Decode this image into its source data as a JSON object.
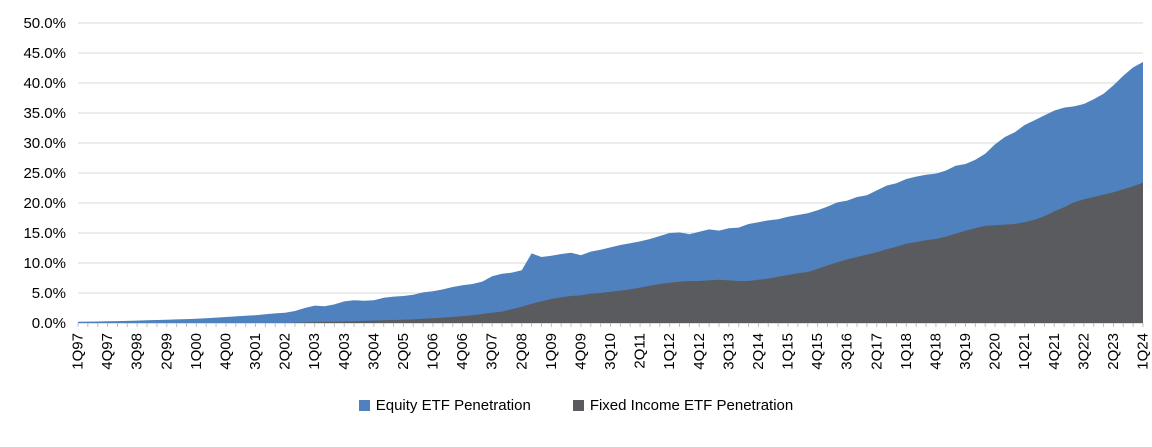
{
  "chart_data": {
    "type": "area",
    "title": "",
    "x_start": "1Q97",
    "x_end": "1Q24",
    "x_frequency": "quarterly",
    "n_points": 109,
    "x_tick_every": 3,
    "x_tick_labels": [
      "1Q97",
      "4Q97",
      "3Q98",
      "2Q99",
      "1Q00",
      "4Q00",
      "3Q01",
      "2Q02",
      "1Q03",
      "4Q03",
      "3Q04",
      "2Q05",
      "1Q06",
      "4Q06",
      "3Q07",
      "2Q08",
      "1Q09",
      "4Q09",
      "3Q10",
      "2Q11",
      "1Q12",
      "4Q12",
      "3Q13",
      "2Q14",
      "1Q15",
      "4Q15",
      "3Q16",
      "2Q17",
      "1Q18",
      "4Q18",
      "3Q19",
      "2Q20",
      "1Q21",
      "4Q21",
      "3Q22",
      "2Q23",
      "1Q24"
    ],
    "ylim": [
      0,
      50
    ],
    "y_tick_step": 5,
    "y_tick_labels_top_to_bottom": [
      "50.0%",
      "45.0%",
      "40.0%",
      "35.0%",
      "30.0%",
      "25.0%",
      "20.0%",
      "15.0%",
      "10.0%",
      "5.0%",
      "0.0%"
    ],
    "grid": "horizontal",
    "legend_position": "bottom",
    "series": [
      {
        "name": "Equity ETF Penetration",
        "color": "#4E81BD",
        "values": [
          0.2,
          0.22,
          0.25,
          0.3,
          0.32,
          0.35,
          0.4,
          0.45,
          0.5,
          0.55,
          0.6,
          0.65,
          0.7,
          0.8,
          0.9,
          1.0,
          1.1,
          1.2,
          1.3,
          1.45,
          1.6,
          1.7,
          2.0,
          2.5,
          2.9,
          2.8,
          3.1,
          3.6,
          3.8,
          3.7,
          3.8,
          4.2,
          4.4,
          4.5,
          4.7,
          5.1,
          5.3,
          5.6,
          6.0,
          6.3,
          6.5,
          6.9,
          7.8,
          8.2,
          8.4,
          8.8,
          11.6,
          11.0,
          11.2,
          11.5,
          11.7,
          11.3,
          11.9,
          12.2,
          12.6,
          13.0,
          13.3,
          13.6,
          14.0,
          14.5,
          15.0,
          15.1,
          14.8,
          15.2,
          15.6,
          15.4,
          15.8,
          15.9,
          16.5,
          16.8,
          17.1,
          17.3,
          17.7,
          18.0,
          18.3,
          18.8,
          19.4,
          20.1,
          20.4,
          21.0,
          21.3,
          22.1,
          22.9,
          23.3,
          24.0,
          24.4,
          24.7,
          24.9,
          25.4,
          26.2,
          26.5,
          27.2,
          28.2,
          29.8,
          31.0,
          31.8,
          33.0,
          33.8,
          34.6,
          35.4,
          35.9,
          36.1,
          36.5,
          37.3,
          38.2,
          39.6,
          41.2,
          42.6,
          43.5
        ]
      },
      {
        "name": "Fixed Income ETF Penetration",
        "color": "#5A5B5E",
        "values": [
          0,
          0,
          0,
          0,
          0,
          0,
          0,
          0,
          0,
          0,
          0,
          0,
          0,
          0,
          0,
          0,
          0,
          0,
          0,
          0,
          0,
          0,
          0.05,
          0.1,
          0.15,
          0.18,
          0.2,
          0.25,
          0.3,
          0.35,
          0.4,
          0.45,
          0.5,
          0.55,
          0.6,
          0.7,
          0.8,
          0.9,
          1.0,
          1.15,
          1.3,
          1.5,
          1.7,
          1.9,
          2.3,
          2.7,
          3.2,
          3.6,
          4.0,
          4.3,
          4.5,
          4.6,
          4.9,
          5.0,
          5.2,
          5.4,
          5.6,
          5.9,
          6.2,
          6.5,
          6.7,
          6.9,
          7.0,
          7.0,
          7.1,
          7.2,
          7.1,
          7.0,
          7.0,
          7.2,
          7.4,
          7.7,
          8.0,
          8.3,
          8.5,
          9.0,
          9.6,
          10.1,
          10.6,
          11.0,
          11.4,
          11.8,
          12.3,
          12.7,
          13.2,
          13.5,
          13.8,
          14.0,
          14.4,
          14.9,
          15.4,
          15.8,
          16.2,
          16.3,
          16.4,
          16.5,
          16.8,
          17.2,
          17.8,
          18.6,
          19.3,
          20.1,
          20.6,
          21.0,
          21.4,
          21.8,
          22.3,
          22.8,
          23.4
        ]
      }
    ]
  },
  "legend": {
    "items": [
      {
        "label": "Equity ETF Penetration",
        "color": "#4E81BD"
      },
      {
        "label": "Fixed Income ETF Penetration",
        "color": "#5A5B5E"
      }
    ]
  },
  "colors": {
    "background": "#FFFFFF",
    "gridline": "#D9D9D9",
    "axis_line": "#BFBFBF",
    "tick": "#BFBFBF",
    "text": "#000000"
  }
}
